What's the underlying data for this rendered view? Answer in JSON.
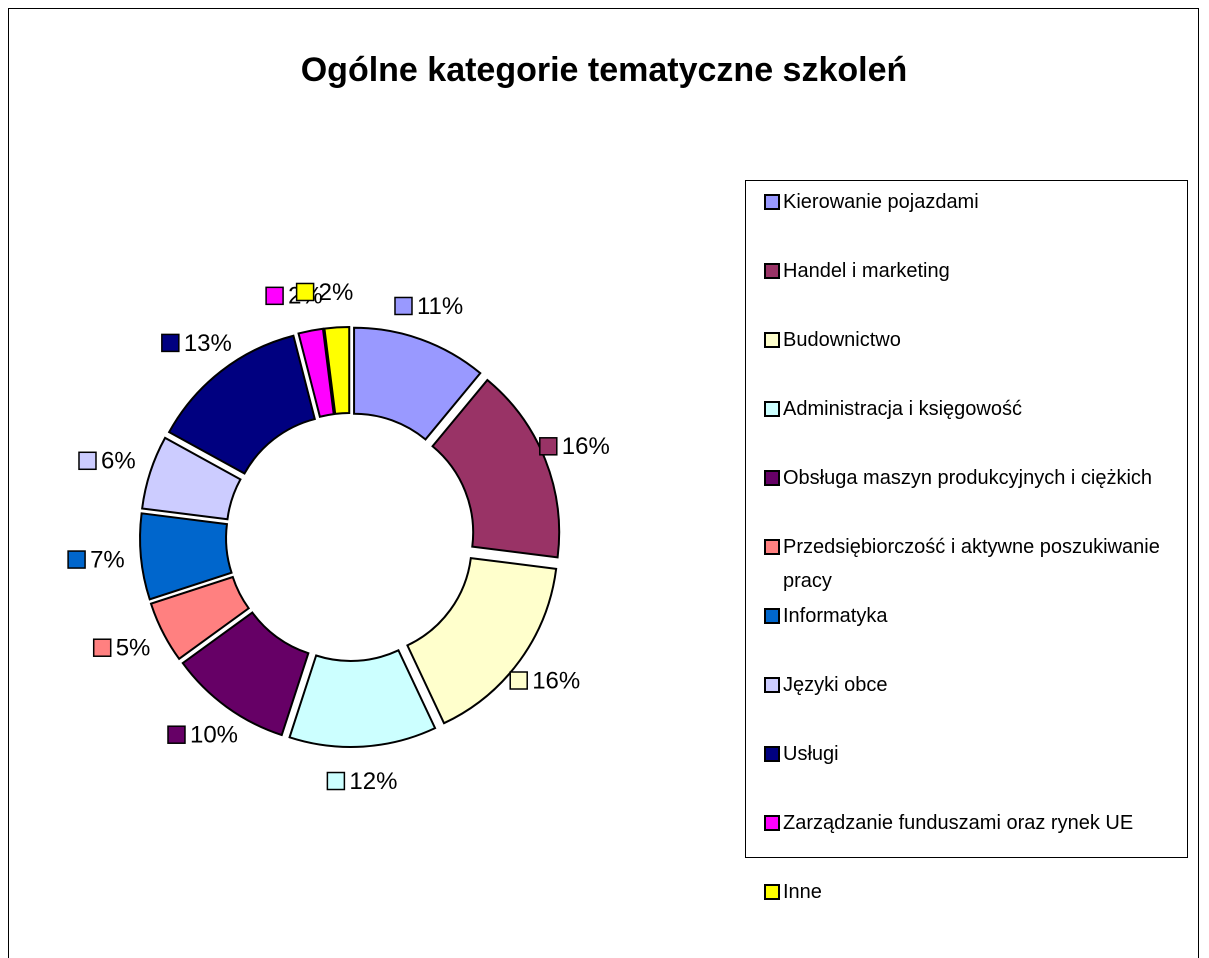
{
  "chart_data": {
    "type": "pie",
    "title": "Ogólne kategorie tematyczne szkoleń",
    "categories": [
      "Kierowanie pojazdami",
      "Handel i marketing",
      "Budownictwo",
      "Administracja i księgowość",
      "Obsługa maszyn produkcyjnych i ciężkich",
      "Przedsiębiorczość i aktywne poszukiwanie pracy",
      "Informatyka",
      "Języki obce",
      "Usługi",
      "Zarządzanie funduszami oraz rynek UE",
      "Inne"
    ],
    "values": [
      11,
      16,
      16,
      12,
      10,
      5,
      7,
      6,
      13,
      2,
      2
    ],
    "value_labels": [
      "11%",
      "16%",
      "16%",
      "12%",
      "10%",
      "5%",
      "7%",
      "6%",
      "13%",
      "2%",
      "2%"
    ],
    "colors": [
      "#9999ff",
      "#993366",
      "#ffffcc",
      "#ccffff",
      "#660066",
      "#ff8080",
      "#0066cc",
      "#ccccff",
      "#000080",
      "#ff00ff",
      "#ffff00"
    ],
    "donut": true,
    "exploded": true,
    "legend": "right"
  }
}
